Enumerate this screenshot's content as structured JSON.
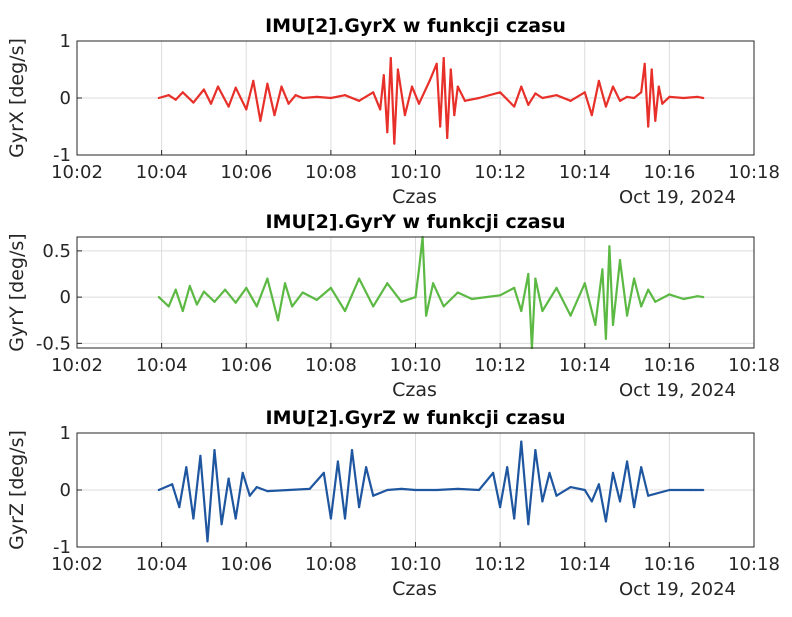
{
  "chart_data": [
    {
      "type": "line",
      "title": "IMU[2].GyrX w funkcji czasu",
      "xlabel": "Czas",
      "ylabel": "GyrX [deg/s]",
      "date_label": "Oct 19, 2024",
      "xlim": [
        "10:02",
        "10:18"
      ],
      "ylim": [
        -1,
        1
      ],
      "xticks": [
        "10:02",
        "10:04",
        "10:06",
        "10:08",
        "10:10",
        "10:12",
        "10:14",
        "10:16",
        "10:18"
      ],
      "yticks": [
        "1",
        "0",
        "-1"
      ],
      "yticks_values": [
        1,
        0,
        -1
      ],
      "grid": true,
      "color": "#e8302a",
      "series": [
        {
          "x": [
            "10:03:56",
            "10:04:10",
            "10:04:20",
            "10:04:30",
            "10:04:45",
            "10:05:00",
            "10:05:10",
            "10:05:20",
            "10:05:35",
            "10:05:45",
            "10:06:00",
            "10:06:10",
            "10:06:20",
            "10:06:30",
            "10:06:40",
            "10:06:50",
            "10:07:00",
            "10:07:10",
            "10:07:20",
            "10:07:40",
            "10:08:00",
            "10:08:20",
            "10:08:40",
            "10:09:00",
            "10:09:10",
            "10:09:15",
            "10:09:20",
            "10:09:25",
            "10:09:30",
            "10:09:35",
            "10:09:45",
            "10:09:55",
            "10:10:05",
            "10:10:20",
            "10:10:30",
            "10:10:35",
            "10:10:40",
            "10:10:45",
            "10:10:50",
            "10:10:55",
            "10:11:00",
            "10:11:10",
            "10:11:30",
            "10:12:00",
            "10:12:20",
            "10:12:30",
            "10:12:40",
            "10:12:50",
            "10:13:00",
            "10:13:20",
            "10:13:40",
            "10:14:00",
            "10:14:10",
            "10:14:20",
            "10:14:30",
            "10:14:40",
            "10:14:50",
            "10:15:00",
            "10:15:10",
            "10:15:20",
            "10:15:25",
            "10:15:30",
            "10:15:35",
            "10:15:40",
            "10:15:45",
            "10:15:50",
            "10:16:00",
            "10:16:20",
            "10:16:40",
            "10:16:48"
          ],
          "y": [
            0.0,
            0.05,
            -0.03,
            0.1,
            -0.08,
            0.15,
            -0.1,
            0.2,
            -0.15,
            0.18,
            -0.2,
            0.3,
            -0.4,
            0.25,
            -0.3,
            0.2,
            -0.1,
            0.05,
            0.0,
            0.02,
            0.0,
            0.05,
            -0.05,
            0.1,
            -0.2,
            0.4,
            -0.6,
            0.7,
            -0.8,
            0.5,
            -0.3,
            0.2,
            -0.1,
            0.3,
            0.6,
            -0.5,
            0.7,
            -0.7,
            0.5,
            -0.3,
            0.2,
            -0.05,
            0.0,
            0.1,
            -0.15,
            0.2,
            -0.12,
            0.08,
            0.0,
            0.05,
            -0.05,
            0.1,
            -0.3,
            0.3,
            -0.15,
            0.2,
            -0.05,
            0.02,
            0.0,
            0.1,
            0.6,
            -0.5,
            0.5,
            -0.4,
            0.2,
            -0.1,
            0.02,
            0.0,
            0.02,
            0.0
          ]
        }
      ]
    },
    {
      "type": "line",
      "title": "IMU[2].GyrY w funkcji czasu",
      "xlabel": "Czas",
      "ylabel": "GyrY [deg/s]",
      "date_label": "Oct 19, 2024",
      "xlim": [
        "10:02",
        "10:18"
      ],
      "ylim": [
        -0.55,
        0.65
      ],
      "xticks": [
        "10:02",
        "10:04",
        "10:06",
        "10:08",
        "10:10",
        "10:12",
        "10:14",
        "10:16",
        "10:18"
      ],
      "yticks": [
        "0.5",
        "0",
        "-0.5"
      ],
      "yticks_values": [
        0.5,
        0,
        -0.5
      ],
      "grid": true,
      "color": "#5cb944",
      "series": [
        {
          "x": [
            "10:03:56",
            "10:04:10",
            "10:04:20",
            "10:04:30",
            "10:04:40",
            "10:04:50",
            "10:05:00",
            "10:05:15",
            "10:05:30",
            "10:05:45",
            "10:06:00",
            "10:06:15",
            "10:06:30",
            "10:06:45",
            "10:06:55",
            "10:07:05",
            "10:07:20",
            "10:07:40",
            "10:08:00",
            "10:08:20",
            "10:08:40",
            "10:09:00",
            "10:09:20",
            "10:09:40",
            "10:10:00",
            "10:10:05",
            "10:10:10",
            "10:10:15",
            "10:10:25",
            "10:10:40",
            "10:11:00",
            "10:11:20",
            "10:11:40",
            "10:12:00",
            "10:12:20",
            "10:12:30",
            "10:12:40",
            "10:12:45",
            "10:12:50",
            "10:13:00",
            "10:13:20",
            "10:13:40",
            "10:14:00",
            "10:14:15",
            "10:14:25",
            "10:14:30",
            "10:14:35",
            "10:14:40",
            "10:14:50",
            "10:15:00",
            "10:15:10",
            "10:15:20",
            "10:15:30",
            "10:15:40",
            "10:16:00",
            "10:16:20",
            "10:16:40",
            "10:16:48"
          ],
          "y": [
            0.0,
            -0.1,
            0.08,
            -0.15,
            0.12,
            -0.08,
            0.06,
            -0.05,
            0.08,
            -0.06,
            0.1,
            -0.1,
            0.2,
            -0.25,
            0.15,
            -0.1,
            0.05,
            -0.03,
            0.1,
            -0.15,
            0.2,
            -0.1,
            0.15,
            -0.05,
            0.0,
            0.3,
            0.65,
            -0.2,
            0.15,
            -0.1,
            0.05,
            -0.02,
            0.0,
            0.02,
            0.1,
            -0.15,
            0.25,
            -0.55,
            0.2,
            -0.15,
            0.1,
            -0.2,
            0.15,
            -0.3,
            0.3,
            -0.45,
            0.55,
            -0.3,
            0.4,
            -0.2,
            0.2,
            -0.1,
            0.08,
            -0.05,
            0.03,
            -0.02,
            0.01,
            0.0
          ]
        }
      ]
    },
    {
      "type": "line",
      "title": "IMU[2].GyrZ w funkcji czasu",
      "xlabel": "Czas",
      "ylabel": "GyrZ [deg/s]",
      "date_label": "Oct 19, 2024",
      "xlim": [
        "10:02",
        "10:18"
      ],
      "ylim": [
        -1,
        1
      ],
      "xticks": [
        "10:02",
        "10:04",
        "10:06",
        "10:08",
        "10:10",
        "10:12",
        "10:14",
        "10:16",
        "10:18"
      ],
      "yticks": [
        "1",
        "0",
        "-1"
      ],
      "yticks_values": [
        1,
        0,
        -1
      ],
      "grid": true,
      "color": "#1f56a0",
      "series": [
        {
          "x": [
            "10:03:56",
            "10:04:15",
            "10:04:25",
            "10:04:35",
            "10:04:45",
            "10:04:55",
            "10:05:05",
            "10:05:15",
            "10:05:25",
            "10:05:35",
            "10:05:45",
            "10:05:55",
            "10:06:05",
            "10:06:15",
            "10:06:30",
            "10:07:00",
            "10:07:30",
            "10:07:50",
            "10:08:00",
            "10:08:10",
            "10:08:20",
            "10:08:30",
            "10:08:40",
            "10:08:50",
            "10:09:00",
            "10:09:20",
            "10:09:40",
            "10:10:00",
            "10:10:30",
            "10:11:00",
            "10:11:30",
            "10:11:50",
            "10:12:00",
            "10:12:10",
            "10:12:20",
            "10:12:30",
            "10:12:40",
            "10:12:50",
            "10:13:00",
            "10:13:10",
            "10:13:20",
            "10:13:40",
            "10:14:00",
            "10:14:10",
            "10:14:20",
            "10:14:30",
            "10:14:40",
            "10:14:50",
            "10:15:00",
            "10:15:10",
            "10:15:20",
            "10:15:30",
            "10:16:00",
            "10:16:30",
            "10:16:48"
          ],
          "y": [
            0.0,
            0.1,
            -0.3,
            0.4,
            -0.5,
            0.6,
            -0.9,
            0.7,
            -0.6,
            0.2,
            -0.5,
            0.3,
            -0.1,
            0.05,
            -0.02,
            0.0,
            0.02,
            0.3,
            -0.5,
            0.5,
            -0.5,
            0.7,
            -0.3,
            0.4,
            -0.1,
            0.0,
            0.02,
            0.0,
            0.0,
            0.02,
            0.0,
            0.3,
            -0.3,
            0.4,
            -0.5,
            0.85,
            -0.6,
            0.7,
            -0.2,
            0.3,
            -0.1,
            0.05,
            0.0,
            -0.2,
            0.1,
            -0.55,
            0.3,
            -0.2,
            0.5,
            -0.3,
            0.4,
            -0.1,
            0.0,
            0.0,
            0.0
          ]
        }
      ]
    }
  ]
}
